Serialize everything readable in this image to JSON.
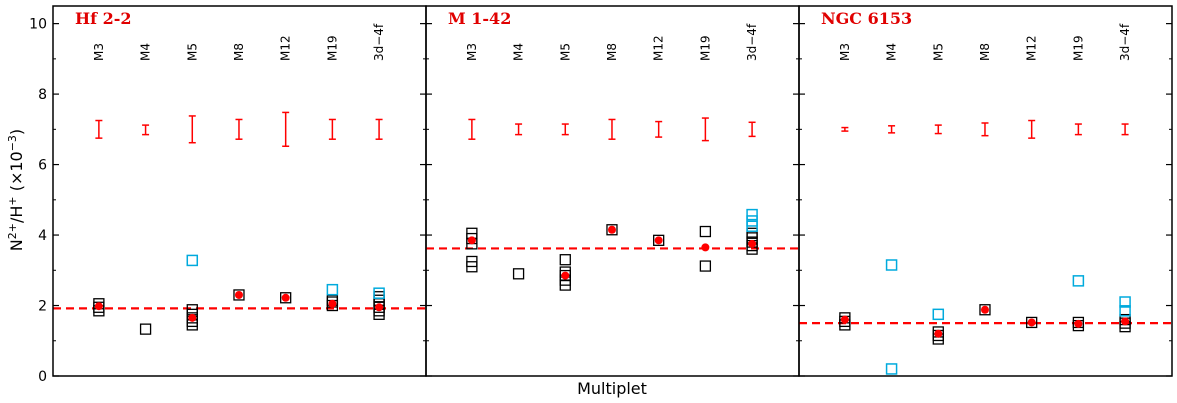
{
  "chart_data": {
    "type": "scatter",
    "xlabel": "Multiplet",
    "ylabel": "N$^{2+}$/H$^+$ (×10$^{-3}$)",
    "ylim": [
      0,
      10.5
    ],
    "yticks": [
      0,
      2,
      4,
      6,
      8,
      10
    ],
    "categories": [
      "M3",
      "M4",
      "M5",
      "M8",
      "M12",
      "M19",
      "3d−4f"
    ],
    "colors": {
      "open_marker": "#000000",
      "cyan_marker": "#00aadd",
      "filled_marker": "#ff0000",
      "mean_line": "#ff0000",
      "error_bar": "#ff0000",
      "title": "#e00000"
    },
    "panels": [
      {
        "title": "Hf 2-2",
        "mean": 1.92,
        "open_points": [
          [
            "M3",
            1.85
          ],
          [
            "M3",
            1.95
          ],
          [
            "M3",
            2.05
          ],
          [
            "M4",
            1.33
          ],
          [
            "M5",
            1.45
          ],
          [
            "M5",
            1.55
          ],
          [
            "M5",
            1.65
          ],
          [
            "M5",
            1.75
          ],
          [
            "M5",
            1.88
          ],
          [
            "M8",
            2.3
          ],
          [
            "M12",
            2.22
          ],
          [
            "M19",
            2.0
          ],
          [
            "M19",
            2.1
          ],
          [
            "M19",
            2.15
          ],
          [
            "3d−4f",
            1.75
          ],
          [
            "3d−4f",
            1.85
          ],
          [
            "3d−4f",
            1.95
          ],
          [
            "3d−4f",
            2.05
          ],
          [
            "3d−4f",
            2.15
          ],
          [
            "3d−4f",
            2.25
          ]
        ],
        "cyan_points": [
          [
            "M5",
            3.28
          ],
          [
            "M19",
            2.45
          ],
          [
            "3d−4f",
            2.35
          ]
        ],
        "filled_points": [
          [
            "M3",
            1.98
          ],
          [
            "M5",
            1.65
          ],
          [
            "M8",
            2.3
          ],
          [
            "M12",
            2.22
          ],
          [
            "M19",
            2.05
          ],
          [
            "3d−4f",
            1.95
          ]
        ],
        "error_bars": [
          [
            "M3",
            6.75,
            7.25
          ],
          [
            "M4",
            6.85,
            7.12
          ],
          [
            "M5",
            6.62,
            7.38
          ],
          [
            "M8",
            6.72,
            7.28
          ],
          [
            "M12",
            6.52,
            7.48
          ],
          [
            "M19",
            6.72,
            7.28
          ],
          [
            "3d−4f",
            6.72,
            7.28
          ]
        ]
      },
      {
        "title": "M 1-42",
        "mean": 3.62,
        "open_points": [
          [
            "M3",
            3.1
          ],
          [
            "M3",
            3.25
          ],
          [
            "M3",
            3.75
          ],
          [
            "M3",
            3.9
          ],
          [
            "M3",
            4.05
          ],
          [
            "M4",
            2.9
          ],
          [
            "M5",
            2.58
          ],
          [
            "M5",
            2.72
          ],
          [
            "M5",
            2.85
          ],
          [
            "M5",
            2.95
          ],
          [
            "M5",
            3.3
          ],
          [
            "M8",
            4.15
          ],
          [
            "M12",
            3.85
          ],
          [
            "M19",
            3.12
          ],
          [
            "M19",
            4.1
          ],
          [
            "3d−4f",
            3.6
          ],
          [
            "3d−4f",
            3.7
          ],
          [
            "3d−4f",
            3.8
          ],
          [
            "3d−4f",
            3.92
          ],
          [
            "3d−4f",
            4.05
          ]
        ],
        "cyan_points": [
          [
            "3d−4f",
            4.25
          ],
          [
            "3d−4f",
            4.4
          ],
          [
            "3d−4f",
            4.58
          ]
        ],
        "filled_points": [
          [
            "M3",
            3.85
          ],
          [
            "M5",
            2.85
          ],
          [
            "M8",
            4.15
          ],
          [
            "M12",
            3.85
          ],
          [
            "M19",
            3.65
          ],
          [
            "3d−4f",
            3.75
          ]
        ],
        "error_bars": [
          [
            "M3",
            6.72,
            7.28
          ],
          [
            "M4",
            6.85,
            7.15
          ],
          [
            "M5",
            6.85,
            7.15
          ],
          [
            "M8",
            6.72,
            7.28
          ],
          [
            "M12",
            6.78,
            7.22
          ],
          [
            "M19",
            6.68,
            7.32
          ],
          [
            "3d−4f",
            6.8,
            7.2
          ]
        ]
      },
      {
        "title": "NGC 6153",
        "mean": 1.5,
        "open_points": [
          [
            "M3",
            1.45
          ],
          [
            "M3",
            1.55
          ],
          [
            "M3",
            1.65
          ],
          [
            "M5",
            1.05
          ],
          [
            "M5",
            1.15
          ],
          [
            "M5",
            1.25
          ],
          [
            "M8",
            1.88
          ],
          [
            "M12",
            1.52
          ],
          [
            "M19",
            1.43
          ],
          [
            "M19",
            1.52
          ],
          [
            "3d−4f",
            1.4
          ],
          [
            "3d−4f",
            1.5
          ],
          [
            "3d−4f",
            1.6
          ]
        ],
        "cyan_points": [
          [
            "M4",
            3.15
          ],
          [
            "M4",
            0.2
          ],
          [
            "M5",
            1.75
          ],
          [
            "M19",
            2.7
          ],
          [
            "3d−4f",
            1.85
          ],
          [
            "3d−4f",
            2.1
          ]
        ],
        "filled_points": [
          [
            "M3",
            1.6
          ],
          [
            "M5",
            1.2
          ],
          [
            "M8",
            1.88
          ],
          [
            "M12",
            1.52
          ],
          [
            "M19",
            1.48
          ],
          [
            "3d−4f",
            1.55
          ]
        ],
        "error_bars": [
          [
            "M3",
            6.95,
            7.05
          ],
          [
            "M4",
            6.9,
            7.1
          ],
          [
            "M5",
            6.88,
            7.12
          ],
          [
            "M8",
            6.82,
            7.18
          ],
          [
            "M12",
            6.75,
            7.25
          ],
          [
            "M19",
            6.85,
            7.15
          ],
          [
            "3d−4f",
            6.85,
            7.15
          ]
        ]
      }
    ]
  }
}
